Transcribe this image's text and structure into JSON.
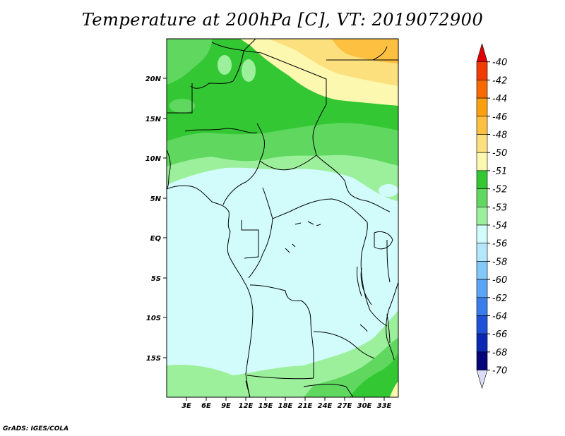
{
  "title": "Temperature at 200hPa [C], VT: 2019072900",
  "credit": "GrADS: IGES/COLA",
  "map": {
    "lon_range": [
      0,
      35
    ],
    "lat_range": [
      -20,
      25
    ],
    "lon_ticks": [
      "3E",
      "6E",
      "9E",
      "12E",
      "15E",
      "18E",
      "21E",
      "24E",
      "27E",
      "30E",
      "33E"
    ],
    "lat_ticks": [
      "20N",
      "15N",
      "10N",
      "5N",
      "EQ",
      "5S",
      "10S",
      "15S"
    ]
  },
  "colorbar": {
    "labels": [
      "-40",
      "-42",
      "-44",
      "-46",
      "-48",
      "-50",
      "-51",
      "-52",
      "-53",
      "-54",
      "-56",
      "-58",
      "-60",
      "-62",
      "-64",
      "-66",
      "-68",
      "-70"
    ],
    "colors": [
      "#e00000",
      "#f03c00",
      "#f86a00",
      "#fca010",
      "#fdc040",
      "#fde07e",
      "#fdf8b0",
      "#33c833",
      "#60d860",
      "#9cf09c",
      "#d2fcfc",
      "#b4e6fc",
      "#82c8f8",
      "#5aa5f5",
      "#3a7cec",
      "#1e50d8",
      "#0a28b4",
      "#04067a",
      "#dcdcf8"
    ]
  },
  "chart_data": {
    "type": "heatmap",
    "title": "Temperature at 200hPa [C], VT: 2019072900",
    "xlabel": "",
    "ylabel": "",
    "x_ticks": [
      "3E",
      "6E",
      "9E",
      "12E",
      "15E",
      "18E",
      "21E",
      "24E",
      "27E",
      "30E",
      "33E"
    ],
    "y_ticks": [
      "20N",
      "15N",
      "10N",
      "5N",
      "EQ",
      "5S",
      "10S",
      "15S"
    ],
    "legend_levels": [
      -40,
      -42,
      -44,
      -46,
      -48,
      -50,
      -51,
      -52,
      -53,
      -54,
      -56,
      -58,
      -60,
      -62,
      -64,
      -66,
      -68,
      -70
    ],
    "bands": [
      {
        "range": "-50 to -48",
        "region": "northern Sahara, north of ~20N from 12E to 35E"
      },
      {
        "range": "-51 to -50",
        "region": "north of ~18N, 10E-35E"
      },
      {
        "range": "-52 to -51",
        "region": "~12N-22N across the domain"
      },
      {
        "range": "-53 to -52",
        "region": "~10N-13N"
      },
      {
        "range": "-54 to -53",
        "region": "~7N-10N and far south ~17S-20S"
      },
      {
        "range": "-56 to -54",
        "region": "~8N to ~16S, most of central Africa"
      }
    ]
  }
}
